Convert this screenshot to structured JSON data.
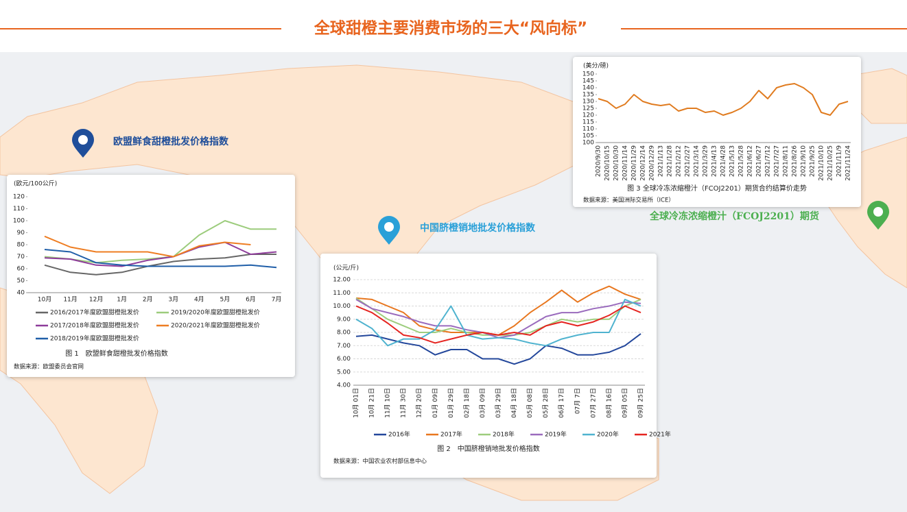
{
  "title": "全球甜橙主要消费市场的三大“风向标”",
  "markers": [
    "欧盟鲜食甜橙批发价格指数",
    "中国脐橙销地批发价格指数",
    "全球冷冻浓缩橙汁（FCOJ2201）期货"
  ],
  "chart_data": [
    {
      "type": "line",
      "y_label": "(欧元/100公斤)",
      "caption": "图 1　欧盟鲜食甜橙批发价格指数",
      "source": "数据来源：欧盟委员会官网",
      "categories": [
        "10月",
        "11月",
        "12月",
        "1月",
        "2月",
        "3月",
        "4月",
        "5月",
        "6月",
        "7月"
      ],
      "ylim": [
        40,
        120
      ],
      "yticks": [
        40,
        50,
        60,
        70,
        80,
        90,
        100,
        110,
        120
      ],
      "grid": false,
      "series": [
        {
          "name": "2016/2017年度欧盟甜橙批发价",
          "color": "#666666",
          "values": [
            63,
            57,
            55,
            57,
            62,
            66,
            68,
            69,
            72,
            72
          ]
        },
        {
          "name": "2019/2020年度欧盟甜橙批发价",
          "color": "#9ccc7c",
          "values": [
            70,
            68,
            65,
            67,
            68,
            70,
            88,
            100,
            93,
            93
          ]
        },
        {
          "name": "2017/2018年度欧盟甜橙批发价",
          "color": "#8e3c9a",
          "values": [
            69,
            68,
            63,
            62,
            67,
            70,
            78,
            82,
            72,
            74
          ]
        },
        {
          "name": "2020/2021年度欧盟甜橙批发价",
          "color": "#ee7d22",
          "values": [
            87,
            78,
            74,
            74,
            74,
            70,
            79,
            82,
            80,
            null
          ]
        },
        {
          "name": "2018/2019年度欧盟甜橙批发价",
          "color": "#1f5ea8",
          "values": [
            76,
            74,
            65,
            63,
            62,
            62,
            62,
            62,
            63,
            61
          ]
        }
      ]
    },
    {
      "type": "line",
      "y_label": "(公元/斤)",
      "caption": "图 2　中国脐橙销地批发价格指数",
      "source": "数据来源：中国农业农村部信息中心",
      "categories": [
        "10月 01日",
        "10月 21日",
        "11月 10日",
        "11月 30日",
        "12月 20日",
        "01月 09日",
        "01月 29日",
        "02月 18日",
        "03月 09日",
        "03月 29日",
        "04月 18日",
        "05月 08日",
        "05月 28日",
        "06月 17日",
        "07月 7日",
        "07月 27日",
        "08月 16日",
        "09月 05日",
        "09月 25日"
      ],
      "ylim": [
        4,
        12
      ],
      "grid": true,
      "yticks": [
        {
          "value": 4,
          "label": "4.00"
        },
        {
          "value": 5,
          "label": "5.00"
        },
        {
          "value": 6,
          "label": "6.00"
        },
        {
          "value": 7,
          "label": "7.00"
        },
        {
          "value": 8,
          "label": "8.00"
        },
        {
          "value": 9,
          "label": "9.00"
        },
        {
          "value": 10,
          "label": "10.00"
        },
        {
          "value": 11,
          "label": "11.00"
        },
        {
          "value": 12,
          "label": "12.00"
        }
      ],
      "series": [
        {
          "name": "2016年",
          "color": "#23479b",
          "values": [
            7.7,
            7.8,
            7.5,
            7.2,
            7.0,
            6.3,
            6.7,
            6.7,
            6.0,
            6.0,
            5.6,
            6.0,
            7.0,
            6.8,
            6.3,
            6.3,
            6.5,
            7.0,
            7.9
          ]
        },
        {
          "name": "2017年",
          "color": "#e8771f",
          "values": [
            10.6,
            10.5,
            10.0,
            9.5,
            8.5,
            8.2,
            8.0,
            8.0,
            8.0,
            7.8,
            8.5,
            9.5,
            10.3,
            11.2,
            10.3,
            11.0,
            11.5,
            10.9,
            10.5
          ]
        },
        {
          "name": "2018年",
          "color": "#9dcd7d",
          "values": [
            10.6,
            9.8,
            9.0,
            8.5,
            8.0,
            8.0,
            8.3,
            8.0,
            7.8,
            7.8,
            7.8,
            8.0,
            8.5,
            9.0,
            8.8,
            9.0,
            9.0,
            10.0,
            10.5
          ]
        },
        {
          "name": "2019年",
          "color": "#9a6bbd",
          "values": [
            10.5,
            9.8,
            9.5,
            9.2,
            8.8,
            8.5,
            8.5,
            8.2,
            8.0,
            7.6,
            7.8,
            8.5,
            9.2,
            9.5,
            9.5,
            9.8,
            10.0,
            10.3,
            10.2
          ]
        },
        {
          "name": "2020年",
          "color": "#4fb3cf",
          "values": [
            9.0,
            8.3,
            7.0,
            7.5,
            7.5,
            8.2,
            10.0,
            7.8,
            7.5,
            7.6,
            7.5,
            7.2,
            7.0,
            7.5,
            7.8,
            8.0,
            8.0,
            10.5,
            10.0
          ]
        },
        {
          "name": "2021年",
          "color": "#e52420",
          "values": [
            10.0,
            9.5,
            8.7,
            7.8,
            7.6,
            7.2,
            7.5,
            7.8,
            8.0,
            7.8,
            8.0,
            7.8,
            8.5,
            8.8,
            8.5,
            8.8,
            9.3,
            10.0,
            9.5
          ]
        }
      ]
    },
    {
      "type": "line",
      "y_label": "(美分/磅)",
      "caption": "图 3  全球冷冻浓缩橙汁（FCOJ2201）期货合约结算价走势",
      "source": "数据来源：美国洲际交易所（ICE）",
      "categories": [
        "2020/9/30",
        "2020/10/15",
        "2020/10/30",
        "2020/11/14",
        "2020/11/29",
        "2020/12/14",
        "2020/12/29",
        "2021/1/13",
        "2021/1/28",
        "2021/2/12",
        "2021/2/27",
        "2021/3/14",
        "2021/3/29",
        "2021/4/13",
        "2021/4/28",
        "2021/5/13",
        "2021/5/28",
        "2021/6/12",
        "2021/6/27",
        "2021/7/12",
        "2021/7/27",
        "2021/8/11",
        "2021/8/26",
        "2021/9/10",
        "2021/9/25",
        "2021/10/10",
        "2021/10/25",
        "2021/11/9",
        "2021/11/24"
      ],
      "ylim": [
        100,
        150
      ],
      "yticks": [
        100,
        105,
        110,
        115,
        120,
        125,
        130,
        135,
        140,
        145,
        150
      ],
      "grid": false,
      "series": [
        {
          "color": "#e07b1f",
          "values": [
            132,
            130,
            125,
            128,
            135,
            130,
            128,
            127,
            128,
            123,
            125,
            125,
            122,
            123,
            120,
            122,
            125,
            130,
            138,
            132,
            140,
            142,
            143,
            140,
            135,
            122,
            120,
            128,
            130
          ]
        }
      ]
    }
  ]
}
